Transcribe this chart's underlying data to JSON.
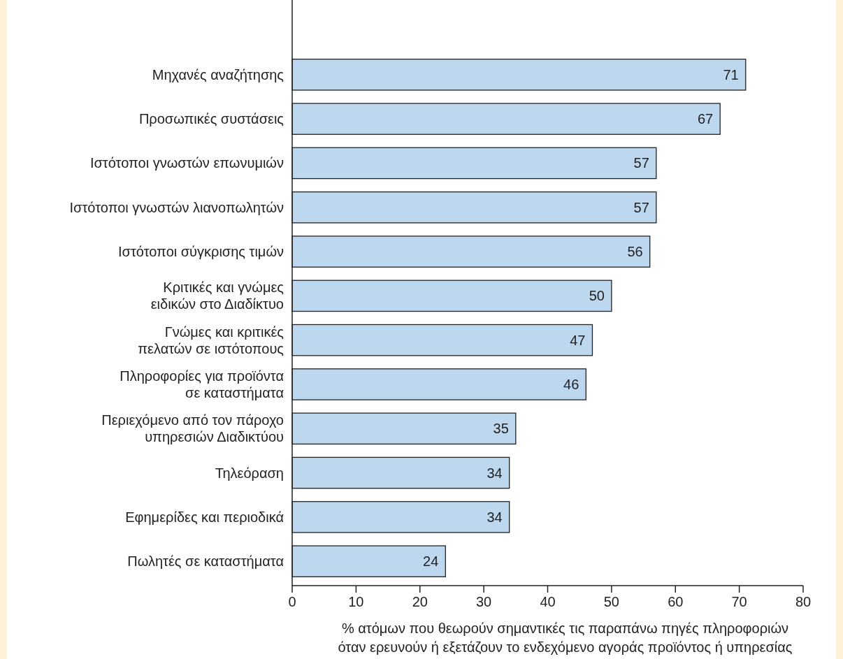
{
  "chart_data": {
    "type": "bar",
    "orientation": "horizontal",
    "xlabel": "% ατόμων που θεωρούν σημαντικές τις παραπάνω πηγές πληροφοριών\nόταν ερευνούν ή εξετάζουν το ενδεχόμενο αγοράς προϊόντος ή υπηρεσίας",
    "categories": [
      "Μηχανές αναζήτησης",
      "Προσωπικές συστάσεις",
      "Ιστότοποι γνωστών επωνυμιών",
      "Ιστότοποι γνωστών λιανοπωλητών",
      "Ιστότοποι σύγκρισης τιμών",
      "Κριτικές και γνώμες\nειδικών στο Διαδίκτυο",
      "Γνώμες και κριτικές\nπελατών σε ιστότοπους",
      "Πληροφορίες για προϊόντα\nσε καταστήματα",
      "Περιεχόμενο από τον πάροχο\nυπηρεσιών Διαδικτύου",
      "Τηλεόραση",
      "Εφημερίδες και περιοδικά",
      "Πωλητές σε καταστήματα"
    ],
    "values": [
      71,
      67,
      57,
      57,
      56,
      50,
      47,
      46,
      35,
      34,
      34,
      24
    ],
    "value_labels": [
      "71",
      "67",
      "57",
      "57",
      "56",
      "50",
      "47",
      "46",
      "35",
      "34",
      "34",
      "24"
    ],
    "color": "#bdd7ee",
    "xlim": [
      0,
      80
    ],
    "xticks": [
      0,
      10,
      20,
      30,
      40,
      50,
      60,
      70,
      80
    ],
    "grid": false
  }
}
